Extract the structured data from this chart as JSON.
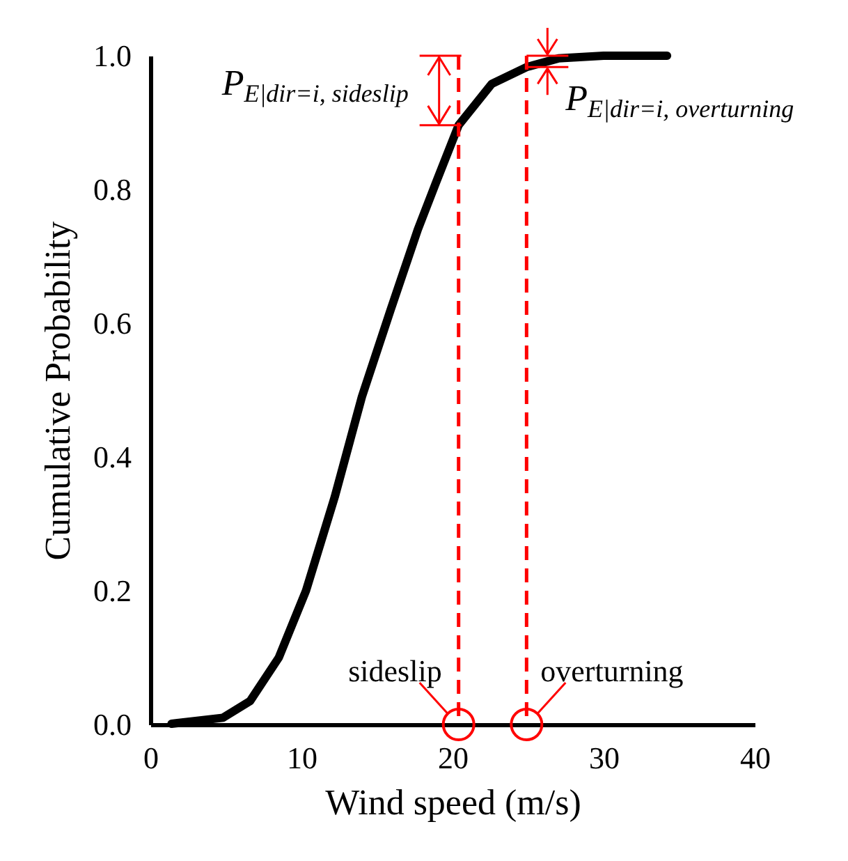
{
  "chart_data": {
    "type": "line",
    "xlabel": "Wind speed (m/s)",
    "ylabel": "Cumulative Probability",
    "x": [
      1.4,
      4.8,
      6.6,
      8.5,
      10.3,
      12.2,
      14.0,
      15.9,
      17.7,
      18.9,
      20.4,
      22.6,
      24.9,
      27,
      30,
      34.2
    ],
    "series": [
      {
        "color": "#000000",
        "values": [
          0.001,
          0.01,
          0.035,
          0.1,
          0.2,
          0.34,
          0.49,
          0.62,
          0.74,
          0.81,
          0.896,
          0.958,
          0.983,
          0.996,
          1.0,
          1.0
        ]
      }
    ],
    "xlim": [
      0,
      40
    ],
    "xticks": [
      0,
      10,
      20,
      30,
      40
    ],
    "ylim": [
      0,
      1.0
    ],
    "yticks": [
      {
        "value": 0,
        "label": "0.0"
      },
      {
        "value": 0.2,
        "label": "0.2"
      },
      {
        "value": 0.4,
        "label": "0.4"
      },
      {
        "value": 0.6,
        "label": "0.6"
      },
      {
        "value": 0.8,
        "label": "0.8"
      },
      {
        "value": 1.0,
        "label": "1.0"
      }
    ],
    "ref_lines": [
      {
        "axis": "x",
        "value": 20.4,
        "label": "sideslip",
        "color": "#ff0000",
        "line_style": "dashed"
      },
      {
        "axis": "x",
        "value": 24.9,
        "label": "overturning",
        "color": "#ff0000",
        "line_style": "dashed"
      }
    ],
    "annotations": [
      {
        "text": "P$_{E|dir=i, sideslip}$",
        "x": 20.4,
        "y": 0.95
      },
      {
        "text": "P$_{E|dir=i, overturning}$",
        "x": 24.9,
        "y": 0.99
      }
    ],
    "grid": false,
    "marker": "none",
    "line_style": "solid"
  }
}
